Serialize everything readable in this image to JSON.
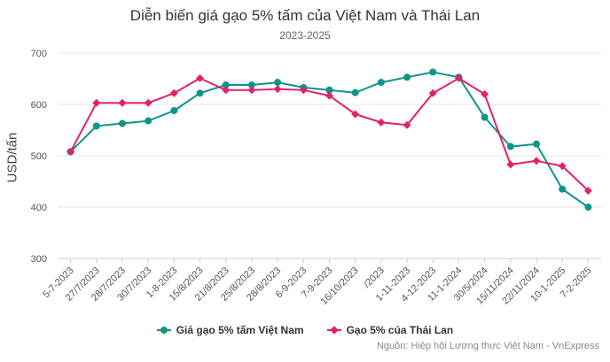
{
  "chart_data": {
    "type": "line",
    "title": "Diễn biến giá gạo 5% tấm của Việt Nam và Thái Lan",
    "subtitle": "2023-2025",
    "ylabel": "USD/tấn",
    "xlabel": "",
    "ylim": [
      300,
      700
    ],
    "yticks": [
      300,
      400,
      500,
      600,
      700
    ],
    "grid": true,
    "legend_position": "bottom",
    "source": "Nguồn: Hiệp hội Lương thực Việt Nam - VnExpress",
    "categories": [
      "5-7-2023",
      "27/7/2023",
      "28/7/2023",
      "30/7/2023",
      "1-8-2023",
      "15/8/2023",
      "21/8/2023",
      "25/8/2023",
      "28/8/2023",
      "6-9-2023",
      "7-9-2023",
      "16/10/2023",
      "/2023",
      "1-11-2023",
      "4-12-2023",
      "11-1-2024",
      "30/5/2024",
      "15/11/2024",
      "22/11/2024",
      "10-1-2025",
      "7-2-2025"
    ],
    "series": [
      {
        "name": "Giá gạo 5% tấm Việt Nam",
        "color": "#0f9488",
        "marker": "circle",
        "values": [
          508,
          558,
          563,
          568,
          588,
          622,
          638,
          638,
          643,
          633,
          628,
          623,
          643,
          653,
          663,
          653,
          575,
          518,
          523,
          435,
          400
        ]
      },
      {
        "name": "Gạo 5% của Thái Lan",
        "color": "#e0226a",
        "marker": "diamond",
        "values": [
          508,
          603,
          603,
          603,
          622,
          651,
          628,
          628,
          630,
          628,
          617,
          581,
          565,
          560,
          622,
          651,
          620,
          483,
          490,
          480,
          432
        ]
      }
    ]
  }
}
